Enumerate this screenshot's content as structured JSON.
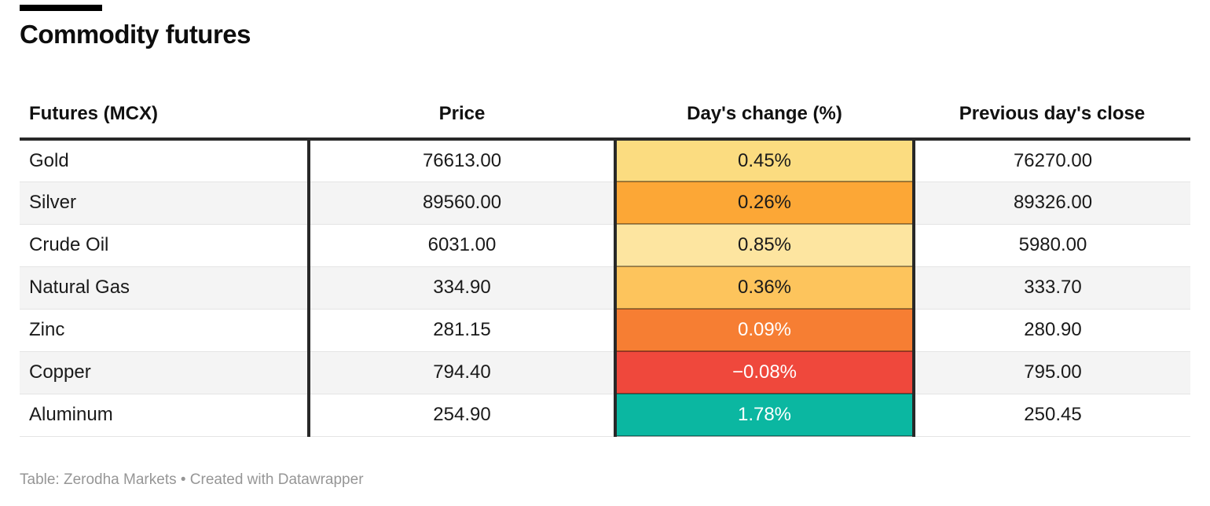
{
  "title": "Commodity futures",
  "decor": {
    "top_bar_color": "#000000"
  },
  "table": {
    "headers": {
      "futures": "Futures (MCX)",
      "price": "Price",
      "change": "Day's change (%)",
      "prev_close": "Previous day's close"
    },
    "rows": [
      {
        "name": "Gold",
        "price": "76613.00",
        "change": "0.45%",
        "prev_close": "76270.00",
        "change_style": "background:#fbdc80;color:#1a1a1a"
      },
      {
        "name": "Silver",
        "price": "89560.00",
        "change": "0.26%",
        "prev_close": "89326.00",
        "change_style": "background:#fca736;color:#1a1a1a"
      },
      {
        "name": "Crude Oil",
        "price": "6031.00",
        "change": "0.85%",
        "prev_close": "5980.00",
        "change_style": "background:#fde5a0;color:#1a1a1a"
      },
      {
        "name": "Natural Gas",
        "price": "334.90",
        "change": "0.36%",
        "prev_close": "333.70",
        "change_style": "background:#fdc45c;color:#1a1a1a"
      },
      {
        "name": "Zinc",
        "price": "281.15",
        "change": "0.09%",
        "prev_close": "280.90",
        "change_style": "background:#f67e33;color:#ffffff"
      },
      {
        "name": "Copper",
        "price": "794.40",
        "change": "−0.08%",
        "prev_close": "795.00",
        "change_style": "background:#ef483c;color:#ffffff"
      },
      {
        "name": "Aluminum",
        "price": "254.90",
        "change": "1.78%",
        "prev_close": "250.45",
        "change_style": "background:#0bb7a1;color:#ffffff"
      }
    ]
  },
  "footer": {
    "text": "Table: Zerodha Markets • Created with Datawrapper"
  },
  "chart_data": {
    "type": "table",
    "title": "Commodity futures",
    "columns": [
      "Futures (MCX)",
      "Price",
      "Day's change (%)",
      "Previous day's close"
    ],
    "rows": [
      [
        "Gold",
        76613.0,
        0.45,
        76270.0
      ],
      [
        "Silver",
        89560.0,
        0.26,
        89326.0
      ],
      [
        "Crude Oil",
        6031.0,
        0.85,
        5980.0
      ],
      [
        "Natural Gas",
        334.9,
        0.36,
        333.7
      ],
      [
        "Zinc",
        281.15,
        0.09,
        280.9
      ],
      [
        "Copper",
        794.4,
        -0.08,
        795.0
      ],
      [
        "Aluminum",
        254.9,
        1.78,
        250.45
      ]
    ],
    "notes": "Day's change (%) column is heatmap-colored: positive small gains in yellows/oranges, negative in red, largest gain in teal; source line reads 'Table: Zerodha Markets • Created with Datawrapper'",
    "cell_colors_day_change": [
      "#fbdc80",
      "#fca736",
      "#fde5a0",
      "#fdc45c",
      "#f67e33",
      "#ef483c",
      "#0bb7a1"
    ]
  }
}
